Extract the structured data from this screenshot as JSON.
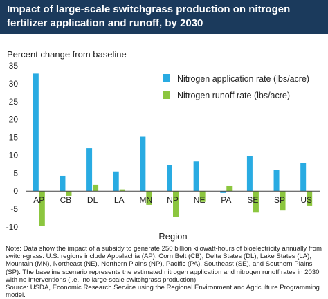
{
  "header": {
    "title": "Impact of large-scale switchgrass production on nitrogen fertilizer application and runoff, by 2030"
  },
  "chart_data": {
    "type": "bar",
    "title": "Impact of large-scale switchgrass production on nitrogen fertilizer application and runoff, by 2030",
    "ylabel": "Percent change from baseline",
    "xlabel": "Region",
    "categories": [
      "AP",
      "CB",
      "DL",
      "LA",
      "MN",
      "NP",
      "NE",
      "PA",
      "SE",
      "SP",
      "US"
    ],
    "series": [
      {
        "name": "Nitrogen application rate (lbs/acre)",
        "color": "#29abe2",
        "values": [
          32.8,
          4.3,
          12.0,
          5.5,
          15.2,
          7.2,
          8.3,
          -0.5,
          9.8,
          6.0,
          7.8
        ]
      },
      {
        "name": "Nitrogen runoff rate (lbs/acre)",
        "color": "#8cc63f",
        "values": [
          -9.8,
          -1.3,
          1.8,
          0.5,
          -3.8,
          -7.1,
          -3.0,
          1.4,
          -6.0,
          -5.4,
          -4.0
        ]
      }
    ],
    "ylim": [
      -10,
      35
    ],
    "yticks": [
      -10,
      -5,
      0,
      5,
      10,
      15,
      20,
      25,
      30,
      35
    ],
    "grid": false,
    "legend_position": "top-right"
  },
  "note": {
    "text": "Note: Data show the impact of a subsidy to generate 250 billion kilowatt-hours of bioelectricity annually from switch-grass. U.S. regions include Appalachia (AP), Corn Belt (CB), Delta States (DL), Lake States (LA), Mountain (MN), Northeast (NE), Northern Plains (NP), Pacific (PA), Southeast (SE), and Southern Plains (SP). The baseline scenario represents the estimated nitrogen application and nitrogen runoff rates in 2030 with no interventions (i.e., no large-scale switchgrass production).",
    "source": "Source: USDA, Economic Research Service using the Regional Environment and Agriculture Programming model."
  }
}
